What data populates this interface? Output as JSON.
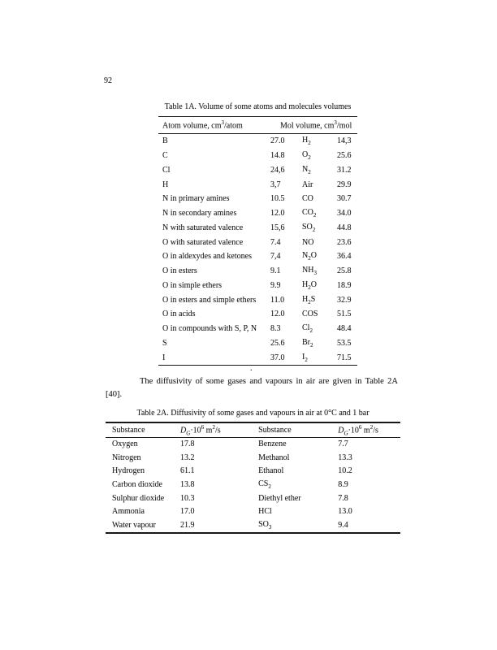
{
  "page": {
    "number": "92"
  },
  "table1": {
    "title": "Table 1A. Volume of some atoms and molecules volumes",
    "head_left": {
      "pre": "Atom volume, cm",
      "sup": "3",
      "post": "/atom"
    },
    "head_right": {
      "pre": "Mol volume, cm",
      "sup": "3",
      "post": "/mol"
    },
    "rows": [
      [
        "B",
        "27.0",
        [
          "H",
          {
            "sub": "2"
          }
        ],
        "14,3"
      ],
      [
        "C",
        "14.8",
        [
          "O",
          {
            "sub": "2"
          }
        ],
        "25.6"
      ],
      [
        "Cl",
        "24,6",
        [
          "N",
          {
            "sub": "2"
          }
        ],
        "31.2"
      ],
      [
        "H",
        "3,7",
        "Air",
        "29.9"
      ],
      [
        "N in primary amines",
        "10.5",
        "CO",
        "30.7"
      ],
      [
        "N in secondary amines",
        "12.0",
        [
          "CO",
          {
            "sub": "2"
          }
        ],
        "34.0"
      ],
      [
        "N with saturated valence",
        "15,6",
        [
          "SO",
          {
            "sub": "2"
          }
        ],
        "44.8"
      ],
      [
        "O with saturated valence",
        "7.4",
        "NO",
        "23.6"
      ],
      [
        "O in aldexydes and ketones",
        "7,4",
        [
          "N",
          {
            "sub": "2"
          },
          "O"
        ],
        "36.4"
      ],
      [
        "O in esters",
        "9.1",
        [
          "NH",
          {
            "sub": "3"
          }
        ],
        "25.8"
      ],
      [
        "O in simple ethers",
        "9.9",
        [
          "H",
          {
            "sub": "2"
          },
          "O"
        ],
        "18.9"
      ],
      [
        "O in esters and simple ethers",
        "11.0",
        [
          "H",
          {
            "sub": "2"
          },
          "S"
        ],
        "32.9"
      ],
      [
        "O in acids",
        "12.0",
        "COS",
        "51.5"
      ],
      [
        "O in compounds with S, P, N",
        "8.3",
        [
          "Cl",
          {
            "sub": "2"
          }
        ],
        "48.4"
      ],
      [
        "S",
        "25.6",
        [
          "Br",
          {
            "sub": "2"
          }
        ],
        "53.5"
      ],
      [
        "I",
        "37.0",
        [
          "I",
          {
            "sub": "2"
          }
        ],
        "71.5"
      ]
    ]
  },
  "paragraph": {
    "line1": "The diffusivity of some gases and vapours in air are given in Table 2A",
    "line2": "[40]."
  },
  "table2": {
    "title": "Table 2A. Diffusivity of some gases and vapours in air at 0°C and 1 bar",
    "substance_header": "Substance",
    "dg_header": {
      "sym": "D",
      "sub": "G",
      "mid": "·10",
      "exp": "6",
      "unit": " m",
      "unit_exp": "2",
      "unit_post": "/s"
    },
    "rows": [
      [
        "Oxygen",
        "17.8",
        "Benzene",
        "7.7"
      ],
      [
        "Nitrogen",
        "13.2",
        "Methanol",
        "13.3"
      ],
      [
        "Hydrogen",
        "61.1",
        "Ethanol",
        "10.2"
      ],
      [
        "Carbon dioxide",
        "13.8",
        [
          "CS",
          {
            "sub": "2"
          }
        ],
        "8.9"
      ],
      [
        "Sulphur dioxide",
        "10.3",
        "Diethyl ether",
        "7.8"
      ],
      [
        "Ammonia",
        "17.0",
        "HCl",
        "13.0"
      ],
      [
        "Water vapour",
        "21.9",
        [
          "SO",
          {
            "sub": "3"
          }
        ],
        "9.4"
      ]
    ]
  },
  "artifact": {
    "dot": "."
  }
}
